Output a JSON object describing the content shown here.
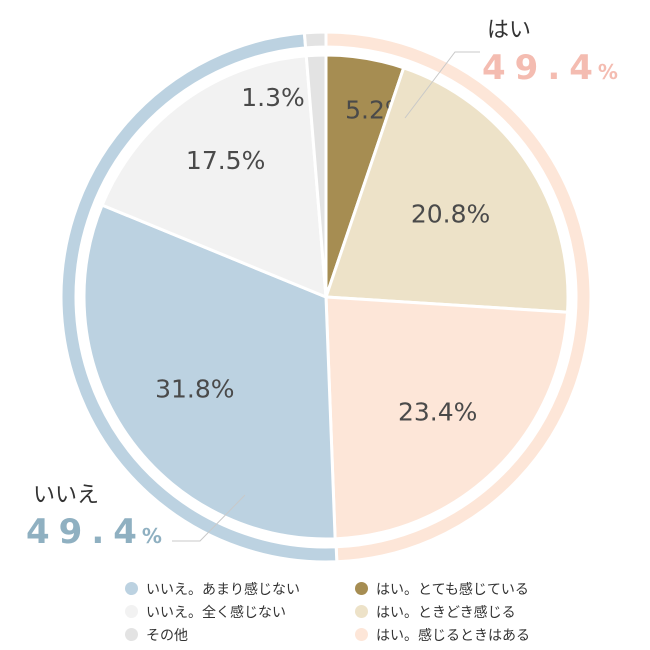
{
  "chart_data": {
    "type": "pie",
    "slices": [
      {
        "name": "はい。とても感じている",
        "value": 5.2,
        "label": "5.2%",
        "color": "#a68d52"
      },
      {
        "name": "はい。ときどき感じる",
        "value": 20.8,
        "label": "20.8%",
        "color": "#ede2c8"
      },
      {
        "name": "はい。感じるときはある",
        "value": 23.4,
        "label": "23.4%",
        "color": "#fde6d8"
      },
      {
        "name": "いいえ。あまり感じない",
        "value": 31.8,
        "label": "31.8%",
        "color": "#bcd2e1"
      },
      {
        "name": "いいえ。全く感じない",
        "value": 17.5,
        "label": "17.5%",
        "color": "#f2f2f2"
      },
      {
        "name": "その他",
        "value": 1.3,
        "label": "1.3%",
        "color": "#e3e3e3"
      }
    ],
    "outer_ring": [
      {
        "name": "はい",
        "value": 49.4,
        "color": "#fde6d8"
      },
      {
        "name": "いいえ",
        "value": 49.4,
        "color": "#bcd2e1"
      },
      {
        "name": "",
        "value": 1.3,
        "color": "#e3e3e3"
      }
    ],
    "legend_placement": "bottom"
  },
  "groups": {
    "yes": {
      "name": "はい",
      "value": "49.4",
      "unit": "%",
      "color": "#f4bcb1"
    },
    "no": {
      "name": "いいえ",
      "value": "49.4",
      "unit": "%",
      "color": "#8fb0c1"
    }
  },
  "legend": [
    {
      "label": "いいえ。あまり感じない",
      "color": "#bcd2e1"
    },
    {
      "label": "はい。とても感じている",
      "color": "#a68d52"
    },
    {
      "label": "いいえ。全く感じない",
      "color": "#f2f2f2"
    },
    {
      "label": "はい。ときどき感じる",
      "color": "#ede2c8"
    },
    {
      "label": "その他",
      "color": "#e3e3e3"
    },
    {
      "label": "はい。感じるときはある",
      "color": "#fde6d8"
    }
  ]
}
